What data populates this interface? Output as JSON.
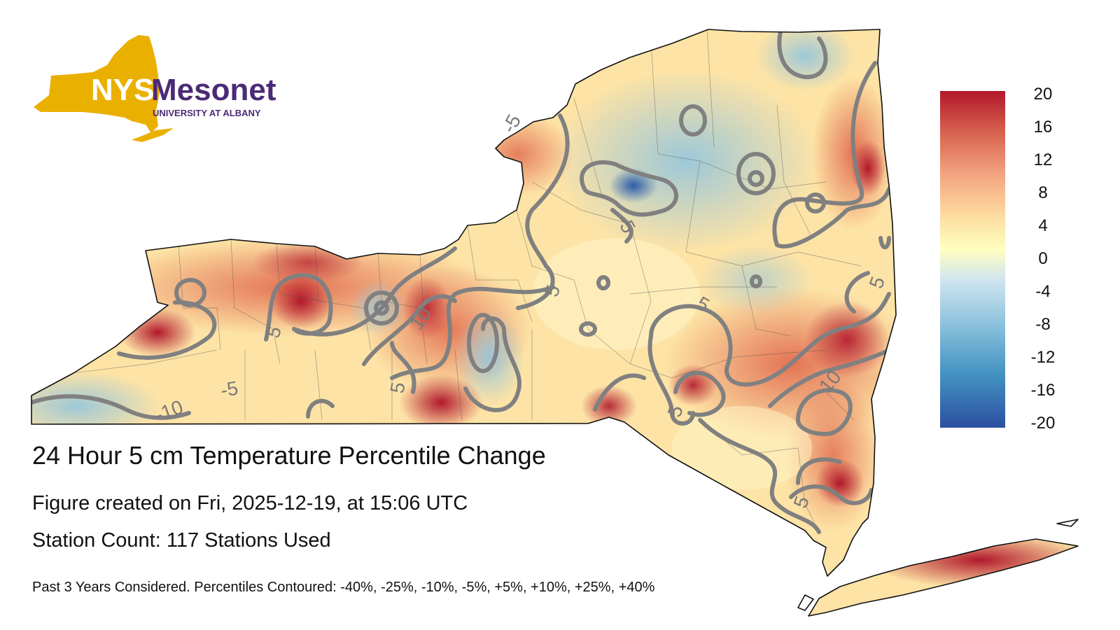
{
  "logo": {
    "badge_text": "NYS",
    "wordmark": "Mesonet",
    "subtitle": "UNIVERSITY AT ALBANY",
    "gold_color": "#EAB000",
    "purple_color": "#4B2A76"
  },
  "map": {
    "title": "24 Hour 5 cm Temperature Percentile Change",
    "created": "Figure created on Fri, 2025-12-19, at 15:06 UTC",
    "stations": "Station Count: 117 Stations Used",
    "footnote": "Past 3 Years Considered. Percentiles Contoured: -40%, -25%, -10%, -5%, +5%, +10%, +25%, +40%",
    "contour_labels": [
      "-5",
      "-5",
      "-5",
      "-10",
      "5",
      "5",
      "5",
      "5",
      "5",
      "5",
      "5",
      "10",
      "10"
    ],
    "contour_color": "#808080"
  },
  "legend": {
    "ticks": [
      "20",
      "16",
      "12",
      "8",
      "4",
      "0",
      "-4",
      "-8",
      "-12",
      "-16",
      "-20"
    ],
    "range": [
      -20,
      20
    ],
    "colors": [
      "#B2182B",
      "#D6604D",
      "#F4A582",
      "#FDDBA0",
      "#FFFFBF",
      "#D1E5F0",
      "#92C5DE",
      "#4393C3",
      "#2C4FA0"
    ]
  }
}
